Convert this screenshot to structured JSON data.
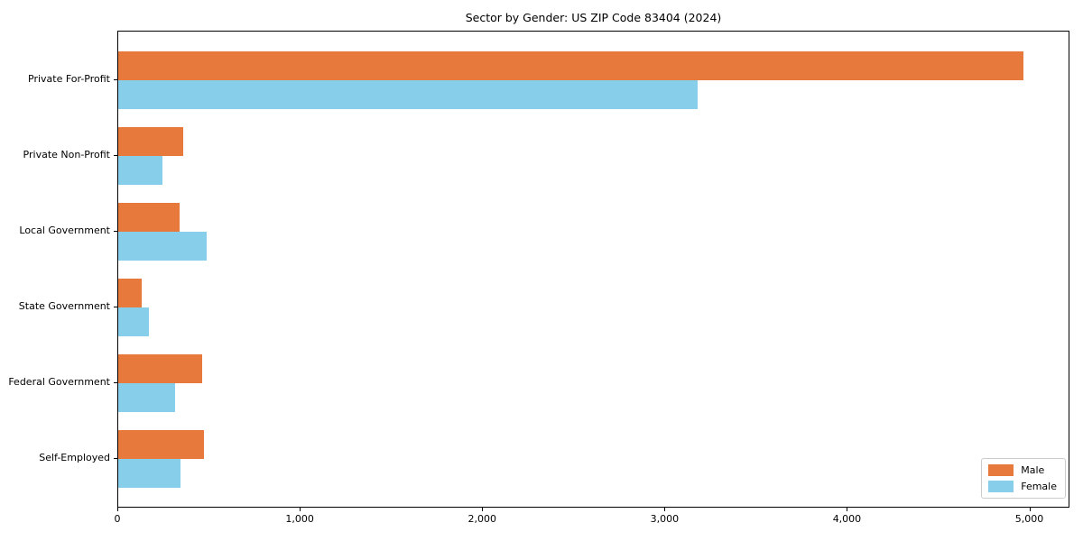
{
  "chart_data": {
    "type": "bar",
    "orientation": "horizontal",
    "title": "Sector by Gender: US ZIP Code 83404 (2024)",
    "categories": [
      "Private For-Profit",
      "Private Non-Profit",
      "Local Government",
      "State Government",
      "Federal Government",
      "Self-Employed"
    ],
    "series": [
      {
        "name": "Male",
        "color": "#E8793D",
        "values": [
          4965,
          355,
          335,
          130,
          460,
          470
        ]
      },
      {
        "name": "Female",
        "color": "#87CEEB",
        "values": [
          3175,
          240,
          485,
          170,
          310,
          340
        ]
      }
    ],
    "xlabel": "",
    "ylabel": "",
    "xlim": [
      0,
      5210
    ],
    "x_ticks": [
      0,
      1000,
      2000,
      3000,
      4000,
      5000
    ],
    "x_tick_labels": [
      "0",
      "1,000",
      "2,000",
      "3,000",
      "4,000",
      "5,000"
    ],
    "legend_position": "lower right",
    "grid": false
  }
}
